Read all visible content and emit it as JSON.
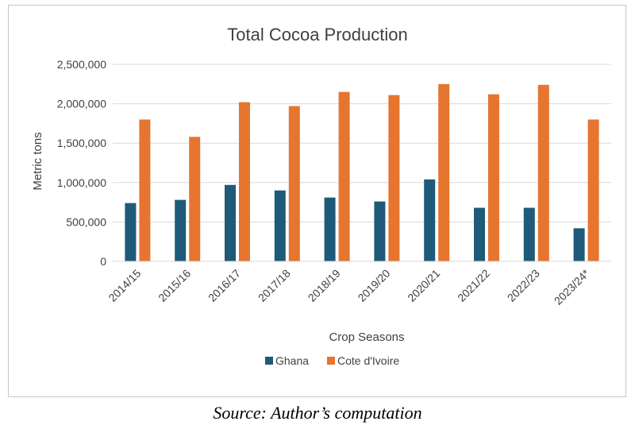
{
  "chart_data": {
    "type": "bar",
    "title": "Total Cocoa Production",
    "xlabel": "Crop Seasons",
    "ylabel": "Metric tons",
    "categories": [
      "2014/15",
      "2015/16",
      "2016/17",
      "2017/18",
      "2018/19",
      "2019/20",
      "2020/21",
      "2021/22",
      "2022/23",
      "2023/24*"
    ],
    "series": [
      {
        "name": "Ghana",
        "color": "#1f5a78",
        "values": [
          740000,
          780000,
          970000,
          900000,
          810000,
          760000,
          1040000,
          680000,
          680000,
          420000
        ]
      },
      {
        "name": "Cote d'Ivoire",
        "color": "#e67530",
        "values": [
          1800000,
          1580000,
          2020000,
          1970000,
          2150000,
          2110000,
          2250000,
          2120000,
          2240000,
          1800000
        ]
      }
    ],
    "ylim": [
      0,
      2500000
    ],
    "yticks": [
      0,
      500000,
      1000000,
      1500000,
      2000000,
      2500000
    ],
    "ytick_labels": [
      "0",
      "500,000",
      "1,000,000",
      "1,500,000",
      "2,000,000",
      "2,500,000"
    ],
    "grid": true,
    "legend_position": "bottom"
  },
  "caption": "Source: Author’s computation"
}
